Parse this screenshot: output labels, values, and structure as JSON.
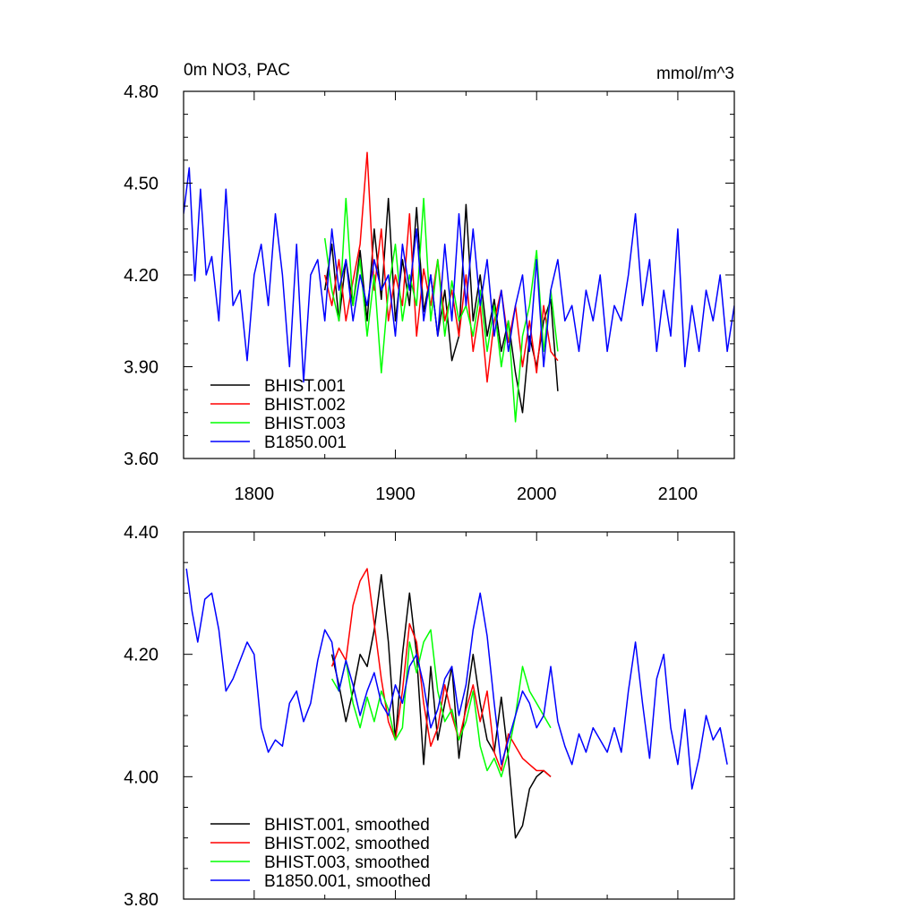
{
  "chart_data": [
    {
      "type": "line",
      "title": "0m NO3, PAC",
      "units": "mmol/m^3",
      "xlabel": "",
      "ylabel": "",
      "xlim": [
        1750,
        2140
      ],
      "ylim": [
        3.6,
        4.8
      ],
      "x_ticks": [
        1800,
        1900,
        2000,
        2100
      ],
      "x_tick_labels": [
        "1800",
        "1900",
        "2000",
        "2100"
      ],
      "y_ticks": [
        3.6,
        3.9,
        4.2,
        4.5,
        4.8
      ],
      "y_tick_labels": [
        "3.60",
        "3.90",
        "4.20",
        "4.50",
        "4.80"
      ],
      "legend_position": "bottom-left",
      "grid": false,
      "series": [
        {
          "name": "BHIST.001",
          "color": "#000000",
          "x": [
            1850,
            1855,
            1860,
            1865,
            1870,
            1875,
            1880,
            1885,
            1890,
            1895,
            1900,
            1905,
            1910,
            1915,
            1920,
            1925,
            1930,
            1935,
            1940,
            1945,
            1950,
            1955,
            1960,
            1965,
            1970,
            1975,
            1980,
            1985,
            1990,
            1995,
            2000,
            2005,
            2010,
            2015
          ],
          "y": [
            4.15,
            4.3,
            4.05,
            4.25,
            4.1,
            4.28,
            4.05,
            4.35,
            4.12,
            4.45,
            4.05,
            4.25,
            4.1,
            4.42,
            4.08,
            4.2,
            4.0,
            4.15,
            3.92,
            4.0,
            4.43,
            4.05,
            4.2,
            4.0,
            4.12,
            3.95,
            4.05,
            3.88,
            3.75,
            4.0,
            3.9,
            4.05,
            4.12,
            3.82
          ]
        },
        {
          "name": "BHIST.002",
          "color": "#ff0000",
          "x": [
            1850,
            1855,
            1860,
            1865,
            1870,
            1875,
            1880,
            1885,
            1890,
            1895,
            1900,
            1905,
            1910,
            1915,
            1920,
            1925,
            1930,
            1935,
            1940,
            1945,
            1950,
            1955,
            1960,
            1965,
            1970,
            1975,
            1980,
            1985,
            1990,
            1995,
            2000,
            2005,
            2010,
            2015
          ],
          "y": [
            4.2,
            4.1,
            4.25,
            4.05,
            4.18,
            4.3,
            4.6,
            4.15,
            4.35,
            4.05,
            4.2,
            4.1,
            4.4,
            4.0,
            4.22,
            4.1,
            4.25,
            4.05,
            4.15,
            4.0,
            4.2,
            3.95,
            4.1,
            3.85,
            4.05,
            4.15,
            3.98,
            4.1,
            3.9,
            4.05,
            3.88,
            4.1,
            3.95,
            3.92
          ]
        },
        {
          "name": "BHIST.003",
          "color": "#00ff00",
          "x": [
            1850,
            1855,
            1860,
            1865,
            1870,
            1875,
            1880,
            1885,
            1890,
            1895,
            1900,
            1905,
            1910,
            1915,
            1920,
            1925,
            1930,
            1935,
            1940,
            1945,
            1950,
            1955,
            1960,
            1965,
            1970,
            1975,
            1980,
            1985,
            1990,
            1995,
            2000,
            2005,
            2010,
            2015
          ],
          "y": [
            4.32,
            4.15,
            4.05,
            4.45,
            4.1,
            4.25,
            4.0,
            4.2,
            3.88,
            4.15,
            4.3,
            4.05,
            4.2,
            4.1,
            4.45,
            4.05,
            4.25,
            4.0,
            4.18,
            4.05,
            4.1,
            4.0,
            4.15,
            3.95,
            4.1,
            3.9,
            4.05,
            3.72,
            4.0,
            4.1,
            4.28,
            3.95,
            4.15,
            3.95
          ]
        },
        {
          "name": "B1850.001",
          "color": "#0000ff",
          "x": [
            1750,
            1754,
            1758,
            1762,
            1766,
            1770,
            1775,
            1780,
            1785,
            1790,
            1795,
            1800,
            1805,
            1810,
            1815,
            1820,
            1825,
            1830,
            1835,
            1840,
            1845,
            1850,
            1855,
            1860,
            1865,
            1870,
            1875,
            1880,
            1885,
            1890,
            1895,
            1900,
            1905,
            1910,
            1915,
            1920,
            1925,
            1930,
            1935,
            1940,
            1945,
            1950,
            1955,
            1960,
            1965,
            1970,
            1975,
            1980,
            1985,
            1990,
            1995,
            2000,
            2005,
            2010,
            2015,
            2020,
            2025,
            2030,
            2035,
            2040,
            2045,
            2050,
            2055,
            2060,
            2065,
            2070,
            2075,
            2080,
            2085,
            2090,
            2095,
            2100,
            2105,
            2110,
            2115,
            2120,
            2125,
            2130,
            2135,
            2140
          ],
          "y": [
            4.4,
            4.55,
            4.18,
            4.48,
            4.2,
            4.26,
            4.05,
            4.48,
            4.1,
            4.15,
            3.92,
            4.2,
            4.3,
            4.1,
            4.4,
            4.2,
            3.9,
            4.3,
            3.85,
            4.2,
            4.25,
            4.05,
            4.35,
            4.15,
            4.25,
            4.05,
            4.2,
            4.1,
            4.25,
            4.15,
            4.2,
            4.0,
            4.3,
            4.15,
            4.35,
            4.05,
            4.2,
            4.0,
            4.3,
            4.05,
            4.4,
            4.1,
            4.35,
            4.1,
            4.25,
            4.0,
            4.15,
            3.95,
            4.1,
            4.2,
            3.95,
            4.25,
            3.9,
            4.15,
            4.25,
            4.05,
            4.1,
            3.95,
            4.15,
            4.05,
            4.2,
            3.95,
            4.1,
            4.05,
            4.2,
            4.4,
            4.1,
            4.25,
            3.95,
            4.15,
            4.0,
            4.35,
            3.9,
            4.1,
            3.95,
            4.15,
            4.05,
            4.2,
            3.95,
            4.1
          ]
        }
      ]
    },
    {
      "type": "line",
      "title": "",
      "xlabel": "",
      "ylabel": "",
      "xlim": [
        1750,
        2140
      ],
      "ylim": [
        3.8,
        4.4
      ],
      "x_ticks": [
        1800,
        1900,
        2000,
        2100
      ],
      "y_ticks": [
        3.8,
        4.0,
        4.2,
        4.4
      ],
      "y_tick_labels": [
        "3.80",
        "4.00",
        "4.20",
        "4.40"
      ],
      "legend_position": "bottom-left",
      "grid": false,
      "series": [
        {
          "name": "BHIST.001, smoothed",
          "color": "#000000",
          "x": [
            1855,
            1860,
            1865,
            1870,
            1875,
            1880,
            1885,
            1890,
            1895,
            1900,
            1905,
            1910,
            1915,
            1920,
            1925,
            1930,
            1935,
            1940,
            1945,
            1950,
            1955,
            1960,
            1965,
            1970,
            1975,
            1980,
            1985,
            1990,
            1995,
            2000,
            2005,
            2010
          ],
          "y": [
            4.2,
            4.15,
            4.09,
            4.14,
            4.2,
            4.18,
            4.24,
            4.33,
            4.22,
            4.06,
            4.2,
            4.3,
            4.2,
            4.02,
            4.18,
            4.06,
            4.12,
            4.18,
            4.03,
            4.12,
            4.2,
            4.12,
            4.06,
            4.04,
            4.13,
            4.03,
            3.9,
            3.92,
            3.98,
            4.0,
            4.01,
            4.0
          ]
        },
        {
          "name": "BHIST.002, smoothed",
          "color": "#ff0000",
          "x": [
            1855,
            1860,
            1865,
            1870,
            1875,
            1880,
            1885,
            1890,
            1895,
            1900,
            1905,
            1910,
            1915,
            1920,
            1925,
            1930,
            1935,
            1940,
            1945,
            1950,
            1955,
            1960,
            1965,
            1970,
            1975,
            1980,
            1985,
            1990,
            1995,
            2000,
            2005,
            2010
          ],
          "y": [
            4.18,
            4.21,
            4.19,
            4.28,
            4.32,
            4.34,
            4.25,
            4.16,
            4.09,
            4.06,
            4.14,
            4.25,
            4.22,
            4.12,
            4.05,
            4.08,
            4.15,
            4.1,
            4.06,
            4.11,
            4.15,
            4.09,
            4.14,
            4.04,
            4.01,
            4.07,
            4.05,
            4.03,
            4.02,
            4.01,
            4.01,
            4.0
          ]
        },
        {
          "name": "BHIST.003, smoothed",
          "color": "#00ff00",
          "x": [
            1855,
            1860,
            1865,
            1870,
            1875,
            1880,
            1885,
            1890,
            1895,
            1900,
            1905,
            1910,
            1915,
            1920,
            1925,
            1930,
            1935,
            1940,
            1945,
            1950,
            1955,
            1960,
            1965,
            1970,
            1975,
            1980,
            1985,
            1990,
            1995,
            2000,
            2005,
            2010
          ],
          "y": [
            4.16,
            4.14,
            4.19,
            4.12,
            4.08,
            4.13,
            4.09,
            4.14,
            4.11,
            4.06,
            4.08,
            4.22,
            4.17,
            4.22,
            4.24,
            4.14,
            4.09,
            4.11,
            4.06,
            4.09,
            4.14,
            4.05,
            4.01,
            4.03,
            4.0,
            4.04,
            4.1,
            4.18,
            4.14,
            4.12,
            4.1,
            4.08
          ]
        },
        {
          "name": "B1850.001, smoothed",
          "color": "#0000ff",
          "x": [
            1752,
            1756,
            1760,
            1765,
            1770,
            1775,
            1780,
            1785,
            1790,
            1795,
            1800,
            1805,
            1810,
            1815,
            1820,
            1825,
            1830,
            1835,
            1840,
            1845,
            1850,
            1855,
            1860,
            1865,
            1870,
            1875,
            1880,
            1885,
            1890,
            1895,
            1900,
            1905,
            1910,
            1915,
            1920,
            1925,
            1930,
            1935,
            1940,
            1945,
            1950,
            1955,
            1960,
            1965,
            1970,
            1975,
            1980,
            1985,
            1990,
            1995,
            2000,
            2005,
            2010,
            2015,
            2020,
            2025,
            2030,
            2035,
            2040,
            2045,
            2050,
            2055,
            2060,
            2065,
            2070,
            2075,
            2080,
            2085,
            2090,
            2095,
            2100,
            2105,
            2110,
            2115,
            2120,
            2125,
            2130,
            2135
          ],
          "y": [
            4.34,
            4.27,
            4.22,
            4.29,
            4.3,
            4.24,
            4.14,
            4.16,
            4.19,
            4.22,
            4.2,
            4.08,
            4.04,
            4.06,
            4.05,
            4.12,
            4.14,
            4.09,
            4.12,
            4.19,
            4.24,
            4.22,
            4.14,
            4.19,
            4.15,
            4.1,
            4.14,
            4.17,
            4.12,
            4.1,
            4.15,
            4.12,
            4.18,
            4.2,
            4.15,
            4.08,
            4.11,
            4.16,
            4.18,
            4.1,
            4.15,
            4.24,
            4.3,
            4.23,
            4.12,
            4.02,
            4.06,
            4.1,
            4.14,
            4.12,
            4.08,
            4.1,
            4.18,
            4.09,
            4.05,
            4.02,
            4.07,
            4.04,
            4.08,
            4.06,
            4.04,
            4.08,
            4.04,
            4.14,
            4.22,
            4.12,
            4.03,
            4.16,
            4.2,
            4.08,
            4.02,
            4.11,
            3.98,
            4.03,
            4.1,
            4.06,
            4.08,
            4.02
          ]
        }
      ]
    }
  ]
}
